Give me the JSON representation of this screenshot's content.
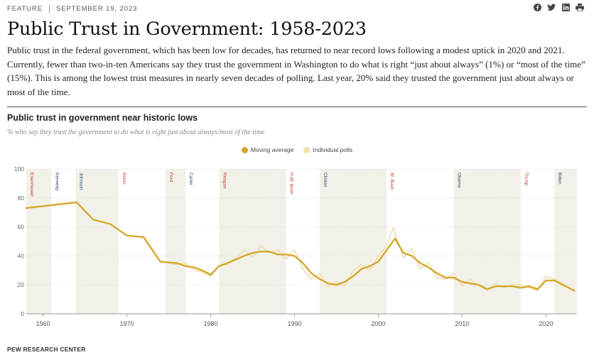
{
  "header": {
    "feature": "FEATURE",
    "date": "SEPTEMBER 19, 2023"
  },
  "share_icons": [
    "facebook-icon",
    "twitter-icon",
    "linkedin-icon",
    "print-icon"
  ],
  "article": {
    "title": "Public Trust in Government: 1958-2023",
    "intro": "Public trust in the federal government, which has been low for decades, has returned to near record lows following a modest uptick in 2020 and 2021. Currently, fewer than two-in-ten Americans say they trust the government in Washington to do what is right “just about always” (1%) or “most of the time” (15%). This is among the lowest trust measures in nearly seven decades of polling. Last year, 20% said they trusted the government just about always or most of the time."
  },
  "source": "PEW RESEARCH CENTER",
  "colors": {
    "moving_average": "#d4a82e",
    "individual_polls": "#f2dcaa",
    "band": "#f1f1e9",
    "republican": "#c0392b",
    "democrat": "#2b4b6b"
  },
  "chart_data": {
    "type": "line",
    "title": "Public trust in government near historic lows",
    "subtitle": "% who say they trust the government to do what is right just about always/most of the time",
    "xlim": [
      1958,
      2023.7
    ],
    "ylim": [
      0,
      100
    ],
    "xticks": [
      1960,
      1970,
      1980,
      1990,
      2000,
      2010,
      2020
    ],
    "yticks": [
      0,
      20,
      40,
      60,
      80,
      100
    ],
    "legend": {
      "position": "top-center"
    },
    "presidents": [
      {
        "name": "Eisenhower",
        "start": 1958,
        "end": 1961,
        "party": "R"
      },
      {
        "name": "Kennedy",
        "start": 1961,
        "end": 1963.9,
        "party": "D"
      },
      {
        "name": "Johnson",
        "start": 1963.9,
        "end": 1969,
        "party": "D"
      },
      {
        "name": "Nixon",
        "start": 1969,
        "end": 1974.6,
        "party": "R"
      },
      {
        "name": "Ford",
        "start": 1974.6,
        "end": 1977,
        "party": "R"
      },
      {
        "name": "Carter",
        "start": 1977,
        "end": 1981,
        "party": "D"
      },
      {
        "name": "Reagan",
        "start": 1981,
        "end": 1989,
        "party": "R"
      },
      {
        "name": "H.W. Bush",
        "start": 1989,
        "end": 1993,
        "party": "R"
      },
      {
        "name": "Clinton",
        "start": 1993,
        "end": 2001,
        "party": "D"
      },
      {
        "name": "W. Bush",
        "start": 2001,
        "end": 2009,
        "party": "R"
      },
      {
        "name": "Obama",
        "start": 2009,
        "end": 2017,
        "party": "D"
      },
      {
        "name": "Trump",
        "start": 2017,
        "end": 2021,
        "party": "R"
      },
      {
        "name": "Biden",
        "start": 2021,
        "end": 2023.7,
        "party": "D"
      }
    ],
    "series": [
      {
        "name": "Moving average",
        "points": [
          [
            1958,
            73
          ],
          [
            1964,
            77
          ],
          [
            1966,
            65
          ],
          [
            1968,
            62
          ],
          [
            1970,
            54
          ],
          [
            1972,
            53
          ],
          [
            1974,
            36
          ],
          [
            1976,
            35
          ],
          [
            1977,
            33
          ],
          [
            1978,
            32
          ],
          [
            1979,
            30
          ],
          [
            1980,
            27
          ],
          [
            1981,
            33
          ],
          [
            1982,
            35
          ],
          [
            1984,
            40
          ],
          [
            1985,
            42
          ],
          [
            1986,
            43
          ],
          [
            1987,
            43
          ],
          [
            1988,
            41
          ],
          [
            1989,
            41
          ],
          [
            1990,
            40
          ],
          [
            1991,
            35
          ],
          [
            1992,
            28
          ],
          [
            1993,
            24
          ],
          [
            1994,
            21
          ],
          [
            1995,
            20
          ],
          [
            1996,
            22
          ],
          [
            1997,
            26
          ],
          [
            1998,
            31
          ],
          [
            1999,
            33
          ],
          [
            2000,
            36
          ],
          [
            2001,
            44
          ],
          [
            2002,
            52
          ],
          [
            2003,
            42
          ],
          [
            2004,
            40
          ],
          [
            2005,
            35
          ],
          [
            2006,
            32
          ],
          [
            2007,
            28
          ],
          [
            2008,
            25
          ],
          [
            2009,
            25
          ],
          [
            2010,
            22
          ],
          [
            2011,
            21
          ],
          [
            2012,
            20
          ],
          [
            2013,
            17
          ],
          [
            2014,
            19
          ],
          [
            2015,
            19
          ],
          [
            2016,
            19
          ],
          [
            2017,
            18
          ],
          [
            2018,
            19
          ],
          [
            2019,
            17
          ],
          [
            2020,
            23
          ],
          [
            2021,
            23
          ],
          [
            2022,
            20
          ],
          [
            2023.4,
            16
          ]
        ]
      },
      {
        "name": "Individual polls",
        "points": [
          [
            1958,
            73
          ],
          [
            1964,
            77
          ],
          [
            1966,
            65
          ],
          [
            1968,
            62
          ],
          [
            1970,
            54
          ],
          [
            1972,
            53
          ],
          [
            1974,
            36
          ],
          [
            1976,
            34
          ],
          [
            1977,
            35
          ],
          [
            1978,
            30
          ],
          [
            1979,
            29
          ],
          [
            1980,
            26
          ],
          [
            1981,
            33
          ],
          [
            1982,
            34
          ],
          [
            1984,
            44
          ],
          [
            1985,
            39
          ],
          [
            1986,
            47
          ],
          [
            1987,
            42
          ],
          [
            1988,
            44
          ],
          [
            1989,
            38
          ],
          [
            1990,
            44
          ],
          [
            1991,
            31
          ],
          [
            1992,
            24
          ],
          [
            1993,
            28
          ],
          [
            1994,
            19
          ],
          [
            1995,
            22
          ],
          [
            1996,
            19
          ],
          [
            1997,
            30
          ],
          [
            1998,
            34
          ],
          [
            1999,
            30
          ],
          [
            2000,
            40
          ],
          [
            2001,
            47
          ],
          [
            2001.8,
            60
          ],
          [
            2002,
            55
          ],
          [
            2003,
            39
          ],
          [
            2004,
            45
          ],
          [
            2005,
            31
          ],
          [
            2006,
            35
          ],
          [
            2007,
            25
          ],
          [
            2008,
            24
          ],
          [
            2009,
            28
          ],
          [
            2010,
            19
          ],
          [
            2011,
            24
          ],
          [
            2012,
            19
          ],
          [
            2013,
            16
          ],
          [
            2014,
            21
          ],
          [
            2015,
            18
          ],
          [
            2016,
            20
          ],
          [
            2017,
            20
          ],
          [
            2018,
            18
          ],
          [
            2019,
            16
          ],
          [
            2020,
            26
          ],
          [
            2021,
            24
          ],
          [
            2022,
            21
          ],
          [
            2023.4,
            16
          ]
        ]
      }
    ]
  }
}
